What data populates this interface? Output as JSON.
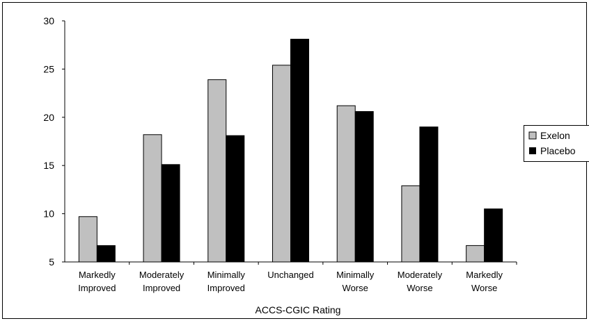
{
  "chart_data": {
    "type": "bar",
    "xlabel": "ACCS-CGIC Rating",
    "ylabel": "",
    "ylim": [
      5,
      30
    ],
    "yticks": [
      "5",
      "10",
      "15",
      "20",
      "25",
      "30"
    ],
    "categories": [
      [
        "Markedly",
        "Improved"
      ],
      [
        "Moderately",
        "Improved"
      ],
      [
        "Minimally",
        "Improved"
      ],
      [
        "Unchanged"
      ],
      [
        "Minimally",
        "Worse"
      ],
      [
        "Moderately",
        "Worse"
      ],
      [
        "Markedly",
        "Worse"
      ]
    ],
    "series": [
      {
        "name": "Exelon",
        "color": "#c0c0c0",
        "values": [
          9.7,
          18.2,
          23.9,
          25.4,
          21.2,
          12.9,
          6.7
        ]
      },
      {
        "name": "Placebo",
        "color": "#000000",
        "values": [
          6.7,
          15.1,
          18.1,
          28.1,
          20.6,
          19.0,
          10.5
        ]
      }
    ],
    "legend": "right",
    "grid": false
  }
}
